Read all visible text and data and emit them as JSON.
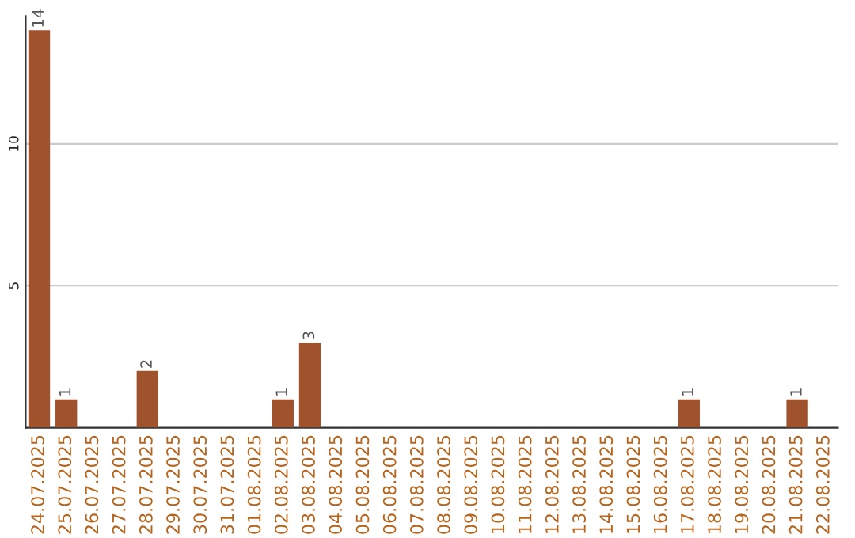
{
  "chart_data": {
    "type": "bar",
    "categories": [
      "24.07.2025",
      "25.07.2025",
      "26.07.2025",
      "27.07.2025",
      "28.07.2025",
      "29.07.2025",
      "30.07.2025",
      "31.07.2025",
      "01.08.2025",
      "02.08.2025",
      "03.08.2025",
      "04.08.2025",
      "05.08.2025",
      "06.08.2025",
      "07.08.2025",
      "08.08.2025",
      "09.08.2025",
      "10.08.2025",
      "11.08.2025",
      "12.08.2025",
      "13.08.2025",
      "14.08.2025",
      "15.08.2025",
      "16.08.2025",
      "17.08.2025",
      "18.08.2025",
      "19.08.2025",
      "20.08.2025",
      "21.08.2025",
      "22.08.2025"
    ],
    "values": [
      14,
      1,
      0,
      0,
      2,
      0,
      0,
      0,
      0,
      1,
      3,
      0,
      0,
      0,
      0,
      0,
      0,
      0,
      0,
      0,
      0,
      0,
      0,
      0,
      1,
      0,
      0,
      0,
      1,
      0
    ],
    "value_labels": [
      "14",
      "1",
      null,
      null,
      "2",
      null,
      null,
      null,
      null,
      "1",
      "3",
      null,
      null,
      null,
      null,
      null,
      null,
      null,
      null,
      null,
      null,
      null,
      null,
      null,
      "1",
      null,
      null,
      null,
      "1",
      null
    ],
    "color": "#a0522d",
    "ylim": [
      0,
      14.5
    ],
    "yticks": [
      5,
      10
    ],
    "grid": "y"
  }
}
